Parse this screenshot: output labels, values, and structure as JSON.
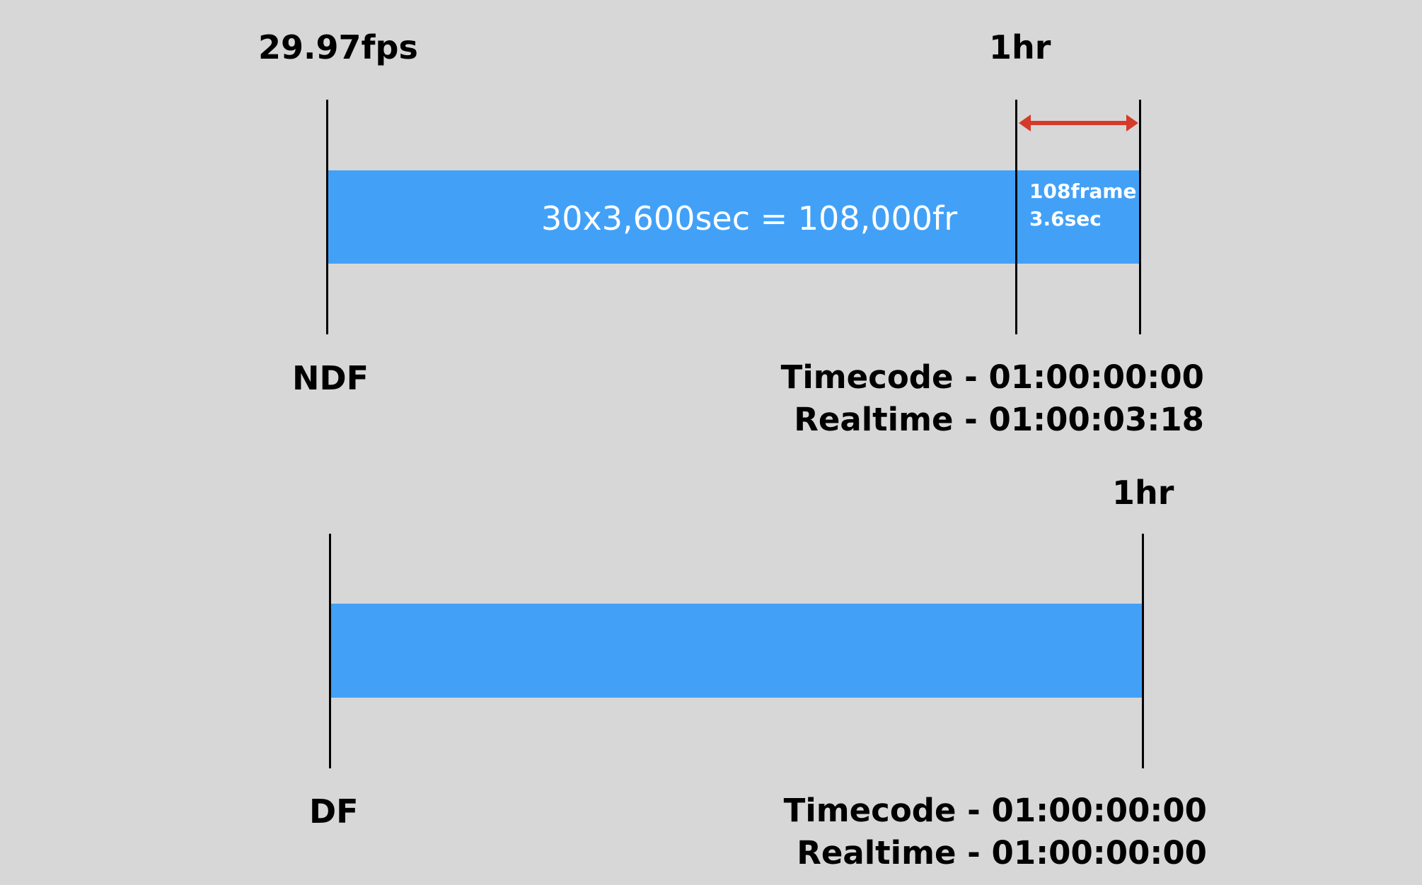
{
  "fps_label": "29.97fps",
  "ndf": {
    "hour_label": "1hr",
    "bar_text": "30x3,600sec = 108,000fr",
    "drift_frames": "108frame",
    "drift_seconds": "3.6sec",
    "mode_label": "NDF",
    "timecode": "Timecode - 01:00:00:00",
    "realtime": "Realtime - 01:00:03:18"
  },
  "df": {
    "hour_label": "1hr",
    "mode_label": "DF",
    "timecode": "Timecode - 01:00:00:00",
    "realtime": "Realtime - 01:00:00:00"
  },
  "colors": {
    "background": "#d7d7d7",
    "bar": "#42a1f7",
    "arrow": "#d63a2a",
    "line": "#000000"
  }
}
